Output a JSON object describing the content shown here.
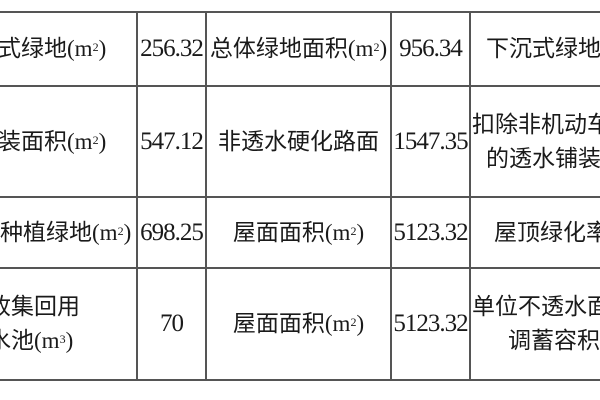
{
  "table": {
    "rows": [
      {
        "c1": [
          "式绿地(m",
          "2",
          ")"
        ],
        "c2": "256.32",
        "c3": [
          "总体绿地面积(m",
          "2",
          ")"
        ],
        "c4": "956.34",
        "c5": [
          "下沉式绿地"
        ]
      },
      {
        "c1": [
          "装面积(m",
          "2",
          ")"
        ],
        "c2": "547.12",
        "c3": [
          "非透水硬化路面",
          "",
          ""
        ],
        "c4": "1547.35",
        "c5": [
          "扣除非机动车",
          "的透水铺装"
        ]
      },
      {
        "c1": [
          "种植绿地(m",
          "2",
          ")"
        ],
        "c2": "698.25",
        "c3": [
          "屋面面积(m",
          "2",
          ")"
        ],
        "c4": "5123.32",
        "c5": [
          "屋顶绿化率"
        ]
      },
      {
        "c1a": "收集回用",
        "c1": [
          "水池(m",
          "3",
          ")"
        ],
        "c2": "70",
        "c3": [
          "屋面面积(m",
          "2",
          ")"
        ],
        "c4": "5123.32",
        "c5": [
          "单位不透水面",
          "调蓄容积"
        ]
      }
    ]
  }
}
